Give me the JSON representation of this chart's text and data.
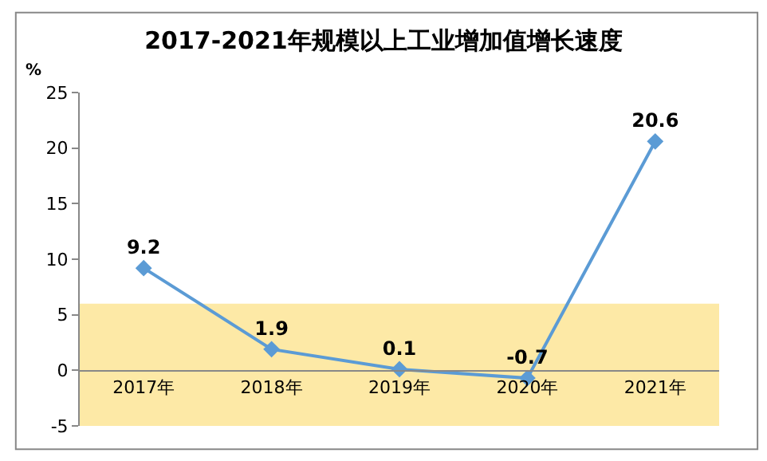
{
  "chart_data": {
    "type": "line",
    "title": "2017-2021年规模以上工业增加值增长速度",
    "ylabel": "%",
    "categories": [
      "2017年",
      "2018年",
      "2019年",
      "2020年",
      "2021年"
    ],
    "series": [
      {
        "color": "#5b9bd5",
        "values": [
          9.2,
          1.9,
          0.1,
          -0.7,
          20.6
        ]
      }
    ],
    "ylim": [
      -5,
      25
    ],
    "yticks": [
      -5,
      0,
      5,
      10,
      15,
      20,
      25
    ],
    "bands": [
      {
        "axis": "y",
        "from": -5,
        "to": 6,
        "color": "#fde9a6"
      }
    ],
    "marker": "diamond",
    "line_style": "solid",
    "data_labels": true,
    "grid": false,
    "legend": false
  }
}
